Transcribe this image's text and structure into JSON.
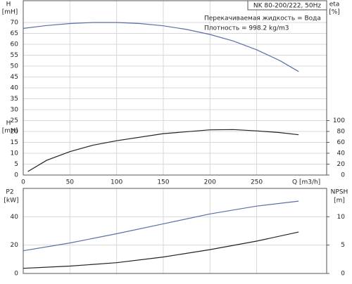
{
  "chart_data": [
    {
      "type": "line",
      "title": "NK 80-200/222, 50Hz",
      "annotations": [
        "Перекачиваемая жидкость = Вода",
        "Плотность = 998.2 kg/m3"
      ],
      "y_label": "H",
      "y_unit": "[mH]",
      "y2_label": "eta",
      "y2_unit": "[%]",
      "x_label": "Q [m3/h]",
      "xlim": [
        0,
        325
      ],
      "xticks": [
        0,
        50,
        100,
        150,
        200,
        250
      ],
      "ylim": [
        0,
        80
      ],
      "yticks": [
        0,
        5,
        10,
        15,
        20,
        25,
        30,
        35,
        40,
        45,
        50,
        55,
        60,
        65,
        70
      ],
      "y2lim": [
        0,
        320
      ],
      "y2ticks": [
        0,
        20,
        40,
        60,
        80,
        100
      ],
      "grid": true,
      "series": [
        {
          "name": "H",
          "color": "#5b6fa3",
          "x": [
            0,
            25,
            50,
            75,
            100,
            125,
            150,
            175,
            200,
            225,
            250,
            275,
            295
          ],
          "values": [
            67.3,
            68.6,
            69.5,
            70,
            70,
            69.5,
            68.5,
            66.8,
            64.5,
            61.5,
            57.5,
            52.5,
            47.5
          ]
        },
        {
          "name": "eta",
          "color": "#222222",
          "axis": "y2",
          "x": [
            5,
            25,
            50,
            75,
            100,
            150,
            200,
            225,
            250,
            275,
            295
          ],
          "values": [
            6.5,
            27,
            43,
            55,
            63,
            76,
            83,
            83.5,
            81,
            78,
            74
          ]
        }
      ]
    },
    {
      "type": "line",
      "y_label": "P2",
      "y_unit": "[kW]",
      "y2_label": "NPSH",
      "y2_unit": "[m]",
      "xlim": [
        0,
        325
      ],
      "xticks": [
        0,
        50,
        100,
        150,
        200,
        250
      ],
      "ylim": [
        0,
        60
      ],
      "yticks": [
        0,
        20,
        40
      ],
      "y2lim": [
        0,
        15
      ],
      "y2ticks": [
        0,
        5,
        10
      ],
      "grid": true,
      "series": [
        {
          "name": "P2",
          "color": "#5b6fa3",
          "x": [
            0,
            50,
            100,
            150,
            200,
            250,
            295
          ],
          "values": [
            16,
            21.5,
            28,
            35,
            42,
            47.5,
            51
          ]
        },
        {
          "name": "NPSH",
          "color": "#222222",
          "axis": "y2",
          "x": [
            0,
            50,
            100,
            150,
            200,
            250,
            295
          ],
          "values": [
            0.9,
            1.3,
            1.9,
            2.9,
            4.2,
            5.7,
            7.3
          ]
        }
      ]
    }
  ]
}
